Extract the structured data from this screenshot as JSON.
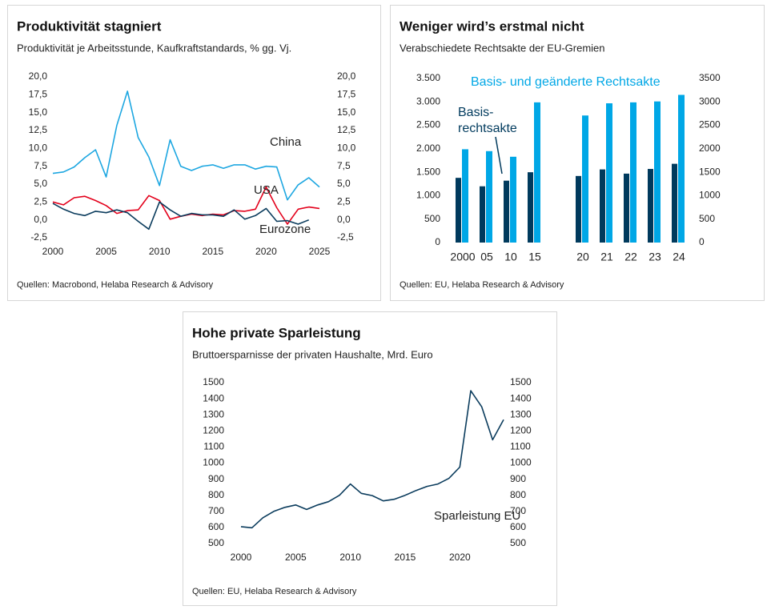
{
  "chart_data": [
    {
      "type": "line",
      "title": "Produktivität stagniert",
      "subtitle": "Produktivität je Arbeitsstunde, Kaufkraftstandards, % gg. Vj.",
      "source": "Quellen: Macrobond, Helaba Research & Advisory",
      "x": [
        2000,
        2001,
        2002,
        2003,
        2004,
        2005,
        2006,
        2007,
        2008,
        2009,
        2010,
        2011,
        2012,
        2013,
        2014,
        2015,
        2016,
        2017,
        2018,
        2019,
        2020,
        2021,
        2022,
        2023,
        2024,
        2025
      ],
      "series": [
        {
          "name": "China",
          "color": "#1ea7e1",
          "values": [
            6.5,
            6.7,
            7.4,
            8.7,
            9.8,
            6.0,
            13.2,
            18.0,
            11.5,
            8.8,
            4.8,
            11.2,
            7.5,
            6.9,
            7.5,
            7.7,
            7.2,
            7.7,
            7.7,
            7.1,
            7.5,
            7.4,
            2.8,
            4.9,
            5.9,
            4.6
          ]
        },
        {
          "name": "USA",
          "color": "#e3001b",
          "values": [
            2.5,
            2.1,
            3.1,
            3.3,
            2.7,
            2.0,
            0.9,
            1.3,
            1.4,
            3.4,
            2.7,
            0.1,
            0.5,
            0.8,
            0.6,
            0.8,
            0.7,
            1.3,
            1.2,
            1.5,
            4.6,
            1.7,
            -0.6,
            1.5,
            1.8,
            1.6
          ]
        },
        {
          "name": "Eurozone",
          "color": "#0b3c5d",
          "values": [
            2.3,
            1.5,
            0.9,
            0.6,
            1.2,
            1.0,
            1.4,
            1.0,
            -0.2,
            -1.3,
            2.5,
            1.4,
            0.5,
            0.9,
            0.7,
            0.7,
            0.5,
            1.4,
            0.1,
            0.6,
            1.6,
            -0.2,
            -0.1,
            -0.6,
            0.0,
            null
          ]
        }
      ],
      "xlim": [
        2000,
        2025
      ],
      "xticks": [
        2000,
        2005,
        2010,
        2015,
        2020,
        2025
      ],
      "ylim": [
        -2.5,
        20
      ],
      "yticks": [
        {
          "value": -2.5,
          "label": "-2,5"
        },
        {
          "value": 0,
          "label": "0,0"
        },
        {
          "value": 2.5,
          "label": "2,5"
        },
        {
          "value": 5,
          "label": "5,0"
        },
        {
          "value": 7.5,
          "label": "7,5"
        },
        {
          "value": 10,
          "label": "10,0"
        },
        {
          "value": 12.5,
          "label": "12,5"
        },
        {
          "value": 15,
          "label": "15,0"
        },
        {
          "value": 17.5,
          "label": "17,5"
        },
        {
          "value": 20,
          "label": "20,0"
        }
      ],
      "y2lim": [
        -2.5,
        20
      ],
      "y2ticks": [
        {
          "value": -2.5,
          "label": "-2,5"
        },
        {
          "value": 0,
          "label": "0,0"
        },
        {
          "value": 2.5,
          "label": "2,5"
        },
        {
          "value": 5,
          "label": "5,0"
        },
        {
          "value": 7.5,
          "label": "7,5"
        },
        {
          "value": 10,
          "label": "10,0"
        },
        {
          "value": 12.5,
          "label": "12,5"
        },
        {
          "value": 15,
          "label": "15,0"
        },
        {
          "value": 17.5,
          "label": "17,5"
        },
        {
          "value": 20,
          "label": "20,0"
        }
      ],
      "grid": false
    },
    {
      "type": "bar",
      "title": "Weniger wird’s erstmal nicht",
      "subtitle": "Verabschiedete Rechtsakte der EU-Gremien",
      "source": "Quellen: EU, Helaba Research & Advisory",
      "categories": [
        "2000",
        "05",
        "10",
        "15",
        null,
        "20",
        "21",
        "22",
        "23",
        "24"
      ],
      "series": [
        {
          "name": "Basis- rechtsakte",
          "color": "#003a5d",
          "values": [
            1380,
            1200,
            1320,
            1500,
            null,
            1420,
            1560,
            1470,
            1570,
            1680
          ]
        },
        {
          "name": "Basis- und geänderte Rechtsakte",
          "color": "#00a7e6",
          "values": [
            1990,
            1950,
            1830,
            2990,
            null,
            2710,
            2970,
            2990,
            3010,
            3150
          ]
        }
      ],
      "ylim": [
        0,
        3500
      ],
      "yticks": [
        0,
        500,
        {
          "value": 1000,
          "label": "1.000"
        },
        {
          "value": 1500,
          "label": "1.500"
        },
        {
          "value": 2000,
          "label": "2.000"
        },
        {
          "value": 2500,
          "label": "2.500"
        },
        {
          "value": 3000,
          "label": "3.000"
        },
        {
          "value": 3500,
          "label": "3.500"
        }
      ],
      "y2lim": [
        0,
        3500
      ],
      "y2ticks": [
        0,
        500,
        1000,
        1500,
        2000,
        2500,
        3000,
        3500
      ],
      "grid": false
    },
    {
      "type": "line",
      "title": "Hohe private Sparleistung",
      "subtitle": "Bruttoersparnisse der privaten Haushalte, Mrd. Euro",
      "source": "Quellen: EU, Helaba Research & Advisory",
      "x": [
        2000,
        2001,
        2002,
        2003,
        2004,
        2005,
        2006,
        2007,
        2008,
        2009,
        2010,
        2011,
        2012,
        2013,
        2014,
        2015,
        2016,
        2017,
        2018,
        2019,
        2020,
        2021,
        2022,
        2023,
        2024
      ],
      "series": [
        {
          "name": "Sparleistung EU",
          "color": "#0b3c5d",
          "values": [
            605,
            598,
            660,
            700,
            725,
            740,
            712,
            740,
            760,
            800,
            870,
            812,
            798,
            765,
            775,
            800,
            830,
            855,
            870,
            905,
            975,
            1450,
            1350,
            1145,
            1270
          ]
        }
      ],
      "xlim": [
        2000,
        2024
      ],
      "xticks": [
        2000,
        2005,
        2010,
        2015,
        2020
      ],
      "ylim": [
        500,
        1500
      ],
      "yticks": [
        500,
        600,
        700,
        800,
        900,
        1000,
        1100,
        1200,
        1300,
        1400,
        1500
      ],
      "y2lim": [
        500,
        1500
      ],
      "y2ticks": [
        500,
        600,
        700,
        800,
        900,
        1000,
        1100,
        1200,
        1300,
        1400,
        1500
      ],
      "grid": false
    }
  ]
}
